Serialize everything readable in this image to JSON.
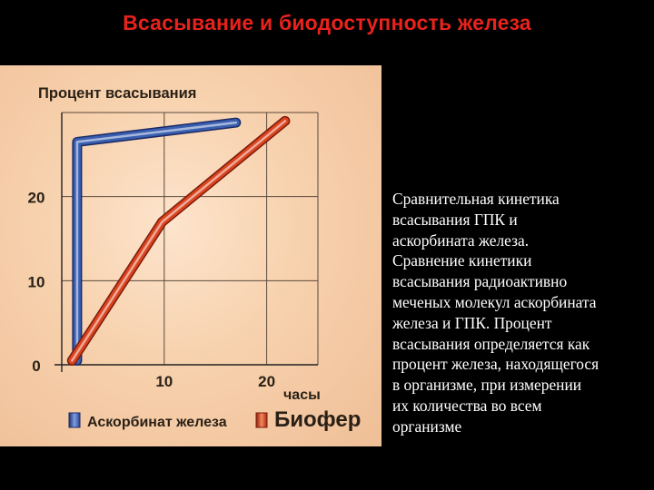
{
  "slide": {
    "title": "Всасывание и биодоступность железа",
    "description": "Сравнительная кинетика\nвсасывания ГПК и\nаскорбината железа.\nСравнение кинетики\nвсасывания радиоактивно\nмеченых молекул аскорбината\nжелеза и ГПК. Процент\nвсасывания определяется как\nпроцент железа, находящегося\nв организме, при измерении\nих количества во всем\nорганизме"
  },
  "colors": {
    "title": "#e8221c",
    "panel": "#f7d1ad",
    "series_blue": "#3a5fb0",
    "series_red": "#d9441f",
    "text": "#ffffff"
  },
  "chart_data": {
    "type": "line",
    "title": "",
    "ylabel": "Процент всасывания",
    "xlabel": "часы",
    "xlim": [
      0,
      25
    ],
    "ylim": [
      0,
      30
    ],
    "xticks": [
      10,
      20
    ],
    "yticks": [
      0,
      10,
      20
    ],
    "grid": true,
    "legend_position": "bottom",
    "series": [
      {
        "name": "Аскорбинат железа",
        "color": "#3a5fb0",
        "points": [
          [
            1.5,
            0.5
          ],
          [
            1.5,
            26.5
          ],
          [
            17,
            28.8
          ]
        ]
      },
      {
        "name": "Биофер",
        "color": "#d9441f",
        "points": [
          [
            1,
            0.5
          ],
          [
            9.8,
            17
          ],
          [
            21.8,
            29
          ]
        ]
      }
    ]
  }
}
